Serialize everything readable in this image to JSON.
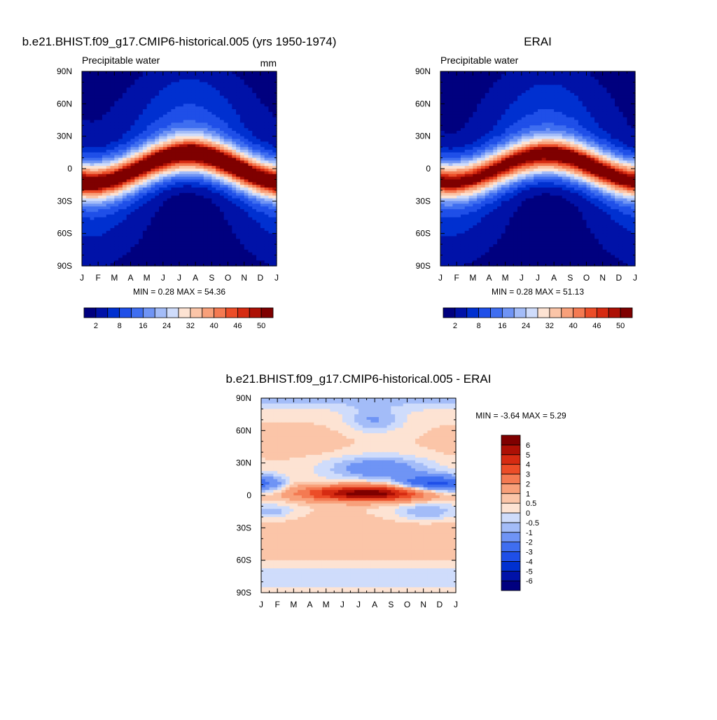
{
  "panels": [
    {
      "title": "b.e21.BHIST.f09_g17.CMIP6-historical.005 (yrs 1950-1974)",
      "left_label": "Precipitable water",
      "right_label": "mm",
      "stats": "MIN =   0.28 MAX =  54.36"
    },
    {
      "title": "ERAI",
      "left_label": "Precipitable water",
      "right_label": "",
      "stats": "MIN =   0.28 MAX =  51.13"
    },
    {
      "title": "b.e21.BHIST.f09_g17.CMIP6-historical.005 - ERAI",
      "left_label": "",
      "right_label": "",
      "stats": "MIN =  -3.64 MAX =   5.29"
    }
  ],
  "chart_data": [
    {
      "type": "heatmap",
      "title": "b.e21.BHIST.f09_g17.CMIP6-historical.005 (yrs 1950-1974)",
      "xlabel": "",
      "ylabel": "",
      "x_ticks": [
        "J",
        "F",
        "M",
        "A",
        "M",
        "J",
        "J",
        "A",
        "S",
        "O",
        "N",
        "D",
        "J"
      ],
      "y_ticks": [
        "90N",
        "60N",
        "30N",
        "0",
        "30S",
        "60S",
        "90S"
      ],
      "y_values": [
        90,
        60,
        30,
        0,
        -30,
        -60,
        -90
      ],
      "ylim": [
        -90,
        90
      ],
      "field_units": "mm",
      "min": 0.28,
      "max": 54.36,
      "model": {
        "kind": "pw",
        "amp": 12,
        "shift": 0,
        "peak": 54,
        "width": 20,
        "nh_base": 4,
        "sh_base": 1.2,
        "gradient": 0
      },
      "colorbar": {
        "orientation": "horizontal",
        "levels": [
          2,
          5,
          8,
          12,
          16,
          20,
          24,
          28,
          32,
          36,
          40,
          43,
          46,
          48,
          50
        ],
        "labels": [
          "2",
          "8",
          "16",
          "24",
          "32",
          "40",
          "46",
          "50"
        ],
        "colors": [
          "#00007f",
          "#0012a8",
          "#0030d0",
          "#1f4fe8",
          "#3f6ef0",
          "#6f94f5",
          "#a3bcf8",
          "#cfdcfb",
          "#fde3d3",
          "#fbc5a8",
          "#f8a07a",
          "#f47a52",
          "#ec4d28",
          "#d62b12",
          "#ad1005",
          "#7f0000"
        ]
      }
    },
    {
      "type": "heatmap",
      "title": "ERAI",
      "xlabel": "",
      "ylabel": "",
      "x_ticks": [
        "J",
        "F",
        "M",
        "A",
        "M",
        "J",
        "J",
        "A",
        "S",
        "O",
        "N",
        "D",
        "J"
      ],
      "y_ticks": [
        "90N",
        "60N",
        "30N",
        "0",
        "30S",
        "60S",
        "90S"
      ],
      "y_values": [
        90,
        60,
        30,
        0,
        -30,
        -60,
        -90
      ],
      "ylim": [
        -90,
        90
      ],
      "min": 0.28,
      "max": 51.13,
      "model": {
        "kind": "pw",
        "amp": 11,
        "shift": 0,
        "peak": 51,
        "width": 20,
        "nh_base": 3,
        "sh_base": 1.2,
        "gradient": 0
      },
      "colorbar": {
        "orientation": "horizontal",
        "levels": [
          2,
          5,
          8,
          12,
          16,
          20,
          24,
          28,
          32,
          36,
          40,
          43,
          46,
          48,
          50
        ],
        "labels": [
          "2",
          "8",
          "16",
          "24",
          "32",
          "40",
          "46",
          "50"
        ],
        "colors": [
          "#00007f",
          "#0012a8",
          "#0030d0",
          "#1f4fe8",
          "#3f6ef0",
          "#6f94f5",
          "#a3bcf8",
          "#cfdcfb",
          "#fde3d3",
          "#fbc5a8",
          "#f8a07a",
          "#f47a52",
          "#ec4d28",
          "#d62b12",
          "#ad1005",
          "#7f0000"
        ]
      }
    },
    {
      "type": "heatmap",
      "title": "b.e21.BHIST.f09_g17.CMIP6-historical.005 - ERAI",
      "xlabel": "",
      "ylabel": "",
      "x_ticks": [
        "J",
        "F",
        "M",
        "A",
        "M",
        "J",
        "J",
        "A",
        "S",
        "O",
        "N",
        "D",
        "J"
      ],
      "y_ticks": [
        "90N",
        "60N",
        "30N",
        "0",
        "30S",
        "60S",
        "90S"
      ],
      "y_values": [
        90,
        60,
        30,
        0,
        -30,
        -60,
        -90
      ],
      "ylim": [
        -90,
        90
      ],
      "min": -3.64,
      "max": 5.29,
      "model": {
        "kind": "diff"
      },
      "colorbar": {
        "orientation": "vertical",
        "levels": [
          -6,
          -5,
          -4,
          -3,
          -2,
          -1,
          -0.5,
          0,
          0.5,
          1,
          2,
          3,
          4,
          5,
          6
        ],
        "labels": [
          "-6",
          "-5",
          "-4",
          "-3",
          "-2",
          "-1",
          "-0.5",
          "0",
          "0.5",
          "1",
          "2",
          "3",
          "4",
          "5",
          "6"
        ],
        "colors": [
          "#00007f",
          "#0012a8",
          "#0030d0",
          "#1f4fe8",
          "#3f6ef0",
          "#6f94f5",
          "#a3bcf8",
          "#cfdcfb",
          "#fde3d3",
          "#fbc5a8",
          "#f8a07a",
          "#f47a52",
          "#ec4d28",
          "#d62b12",
          "#ad1005",
          "#7f0000"
        ]
      }
    }
  ]
}
